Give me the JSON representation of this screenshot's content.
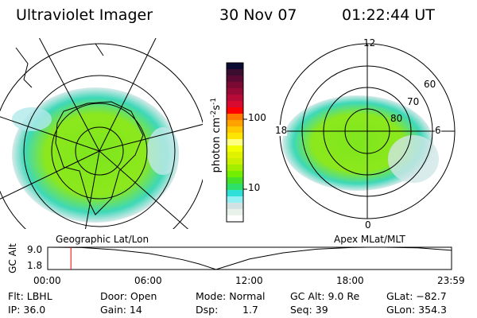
{
  "header": {
    "instrument": "Ultraviolet Imager",
    "date": "30 Nov 07",
    "time": "01:22:44 UT"
  },
  "colorbar": {
    "label": "photon cm",
    "label_exp1": "-2",
    "label_mid": "s",
    "label_exp2": "-1",
    "ticks": [
      "100",
      "10"
    ],
    "colors": [
      "#0b0b33",
      "#3a0c2e",
      "#5a0a32",
      "#7a0a32",
      "#980a36",
      "#b80a36",
      "#d80a30",
      "#ff0000",
      "#ff7800",
      "#ffa200",
      "#ffc800",
      "#ffe400",
      "#ffff80",
      "#f2ff00",
      "#e0f200",
      "#c8f000",
      "#a2ee00",
      "#72ee00",
      "#46e22a",
      "#2ee068",
      "#2ee0d8",
      "#92f0f4",
      "#d2e2e2",
      "#e8f2ea",
      "#ffffff"
    ]
  },
  "left_map": {
    "caption": "Geographic Lat/Lon"
  },
  "right_map": {
    "caption": "Apex MLat/MLT",
    "mlt_labels": [
      "12",
      "18",
      "6",
      "0"
    ],
    "mlat_labels": [
      "60",
      "70",
      "80"
    ]
  },
  "chart_data": {
    "type": "line",
    "title": "",
    "ylabel": "GC Alt",
    "xlabel": "",
    "ytick_labels": [
      "9.0",
      "1.8"
    ],
    "ylim": [
      1.8,
      9.0
    ],
    "xtick_labels": [
      "00:00",
      "06:00",
      "12:00",
      "18:00",
      "23:59"
    ],
    "xlim": [
      0,
      24
    ],
    "x": [
      0,
      2,
      4,
      6,
      8,
      9,
      10,
      11,
      12,
      14,
      16,
      18,
      19,
      20,
      22,
      24
    ],
    "y": [
      9.0,
      8.9,
      8.2,
      7.0,
      5.0,
      3.6,
      1.8,
      3.5,
      5.2,
      7.2,
      8.4,
      8.9,
      9.0,
      9.0,
      8.8,
      8.0
    ],
    "current_time_marker": 1.38,
    "marker_color": "#ff0000"
  },
  "status": {
    "flt": "Flt: LBHL",
    "ip": "IP: 36.0",
    "door": "Door: Open",
    "gain": "Gain: 14",
    "mode": "Mode: Normal",
    "dsp_label": "Dsp:",
    "dsp_value": "1.7",
    "gc_alt": "GC Alt: 9.0 Re",
    "seq": "Seq: 39",
    "glat": "GLat: −82.7",
    "glon": "GLon: 354.3"
  }
}
